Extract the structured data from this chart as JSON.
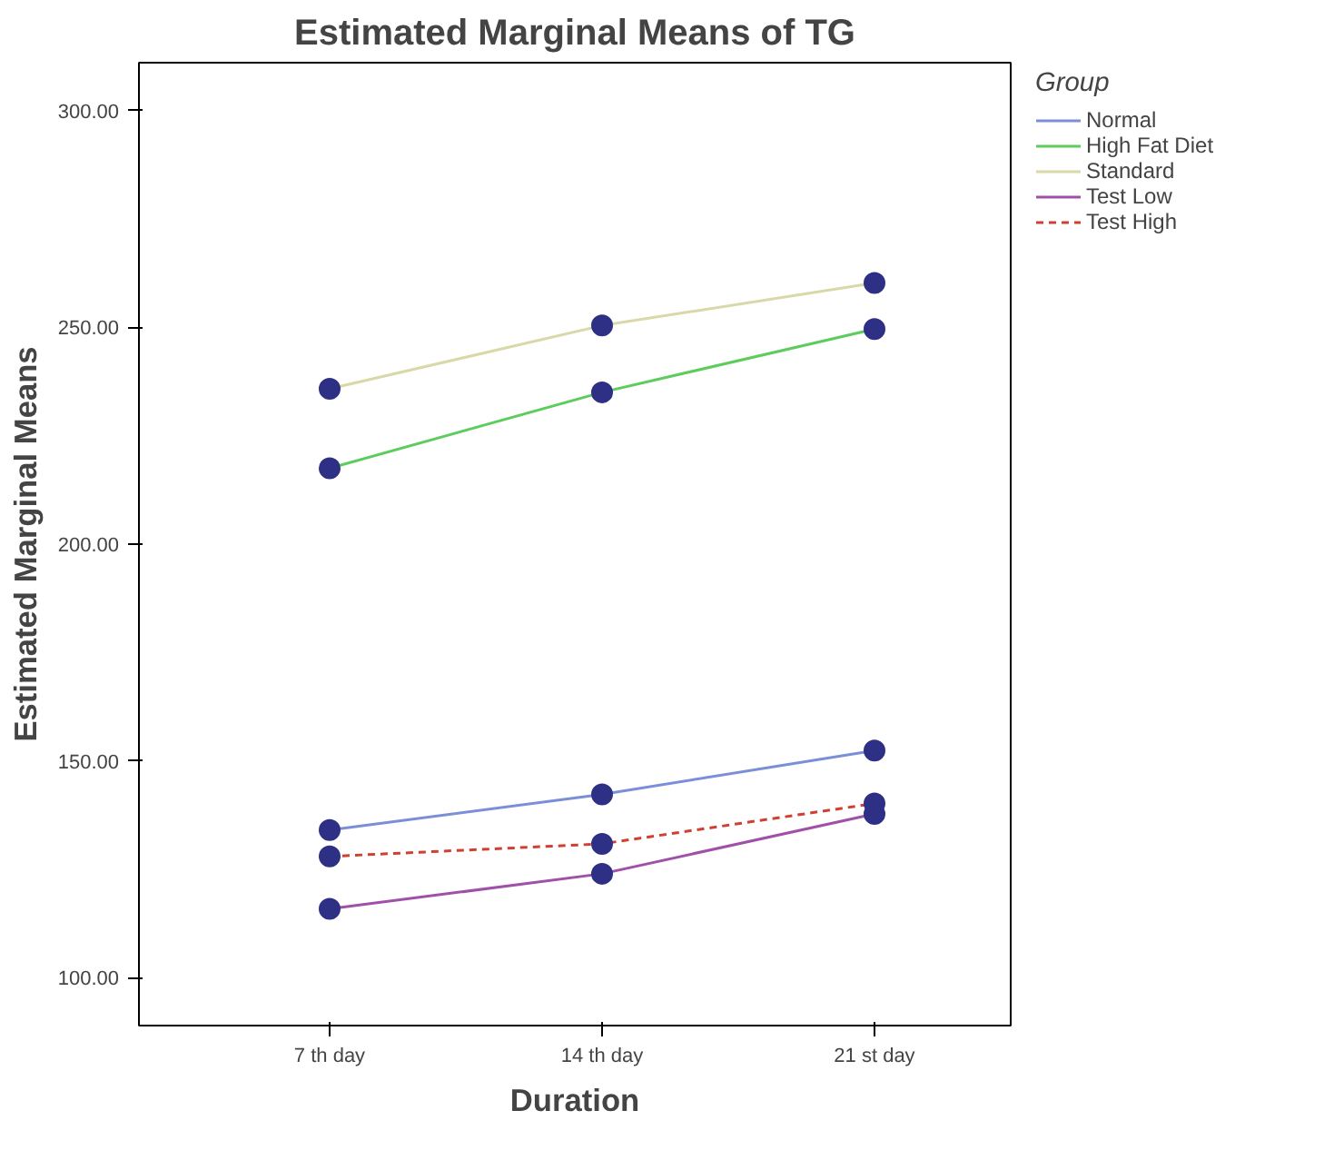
{
  "chart_data": {
    "type": "line",
    "title": "Estimated Marginal Means of TG",
    "xlabel": "Duration",
    "ylabel": "Estimated Marginal Means",
    "legend_title": "Group",
    "categories": [
      "7 th day",
      "14 th day",
      "21 st day"
    ],
    "ylim": [
      89,
      311
    ],
    "yticks": [
      {
        "value": 100,
        "label": "100.00"
      },
      {
        "value": 150,
        "label": "150.00"
      },
      {
        "value": 200,
        "label": "200.00"
      },
      {
        "value": 250,
        "label": "250.00"
      },
      {
        "value": 300,
        "label": "300.00"
      }
    ],
    "grid": false,
    "legend": "top right",
    "marker": "circle",
    "series": [
      {
        "name": "Normal",
        "color": "#7b8fd8",
        "values": [
          134.1,
          142.3,
          152.4
        ],
        "line_style": "solid"
      },
      {
        "name": "High Fat Diet",
        "color": "#5ccc5c",
        "values": [
          217.5,
          235.0,
          249.6
        ],
        "line_style": "solid"
      },
      {
        "name": "Standard",
        "color": "#d8d8a8",
        "values": [
          235.8,
          250.4,
          260.2
        ],
        "line_style": "solid"
      },
      {
        "name": "Test Low",
        "color": "#a050a8",
        "values": [
          115.9,
          124.0,
          137.8
        ],
        "line_style": "solid"
      },
      {
        "name": "Test High",
        "color": "#d04030",
        "values": [
          128.0,
          130.9,
          140.2
        ],
        "line_style": "dashed"
      }
    ]
  }
}
